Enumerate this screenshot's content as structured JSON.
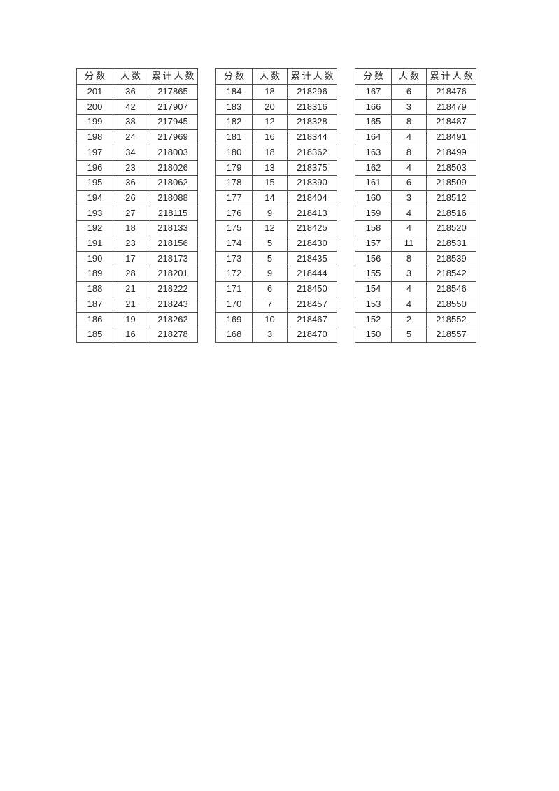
{
  "document": {
    "headers": [
      "分数",
      "人数",
      "累计人数"
    ],
    "tables": [
      {
        "name": "score-table-1",
        "rows": [
          [
            "201",
            "36",
            "217865"
          ],
          [
            "200",
            "42",
            "217907"
          ],
          [
            "199",
            "38",
            "217945"
          ],
          [
            "198",
            "24",
            "217969"
          ],
          [
            "197",
            "34",
            "218003"
          ],
          [
            "196",
            "23",
            "218026"
          ],
          [
            "195",
            "36",
            "218062"
          ],
          [
            "194",
            "26",
            "218088"
          ],
          [
            "193",
            "27",
            "218115"
          ],
          [
            "192",
            "18",
            "218133"
          ],
          [
            "191",
            "23",
            "218156"
          ],
          [
            "190",
            "17",
            "218173"
          ],
          [
            "189",
            "28",
            "218201"
          ],
          [
            "188",
            "21",
            "218222"
          ],
          [
            "187",
            "21",
            "218243"
          ],
          [
            "186",
            "19",
            "218262"
          ],
          [
            "185",
            "16",
            "218278"
          ]
        ]
      },
      {
        "name": "score-table-2",
        "rows": [
          [
            "184",
            "18",
            "218296"
          ],
          [
            "183",
            "20",
            "218316"
          ],
          [
            "182",
            "12",
            "218328"
          ],
          [
            "181",
            "16",
            "218344"
          ],
          [
            "180",
            "18",
            "218362"
          ],
          [
            "179",
            "13",
            "218375"
          ],
          [
            "178",
            "15",
            "218390"
          ],
          [
            "177",
            "14",
            "218404"
          ],
          [
            "176",
            "9",
            "218413"
          ],
          [
            "175",
            "12",
            "218425"
          ],
          [
            "174",
            "5",
            "218430"
          ],
          [
            "173",
            "5",
            "218435"
          ],
          [
            "172",
            "9",
            "218444"
          ],
          [
            "171",
            "6",
            "218450"
          ],
          [
            "170",
            "7",
            "218457"
          ],
          [
            "169",
            "10",
            "218467"
          ],
          [
            "168",
            "3",
            "218470"
          ]
        ]
      },
      {
        "name": "score-table-3",
        "rows": [
          [
            "167",
            "6",
            "218476"
          ],
          [
            "166",
            "3",
            "218479"
          ],
          [
            "165",
            "8",
            "218487"
          ],
          [
            "164",
            "4",
            "218491"
          ],
          [
            "163",
            "8",
            "218499"
          ],
          [
            "162",
            "4",
            "218503"
          ],
          [
            "161",
            "6",
            "218509"
          ],
          [
            "160",
            "3",
            "218512"
          ],
          [
            "159",
            "4",
            "218516"
          ],
          [
            "158",
            "4",
            "218520"
          ],
          [
            "157",
            "11",
            "218531"
          ],
          [
            "156",
            "8",
            "218539"
          ],
          [
            "155",
            "3",
            "218542"
          ],
          [
            "154",
            "4",
            "218546"
          ],
          [
            "153",
            "4",
            "218550"
          ],
          [
            "152",
            "2",
            "218552"
          ],
          [
            "150",
            "5",
            "218557"
          ]
        ]
      }
    ]
  },
  "colors": {
    "background": "#ffffff",
    "border": "#4f4f4f",
    "text": "#1f1f1f"
  }
}
